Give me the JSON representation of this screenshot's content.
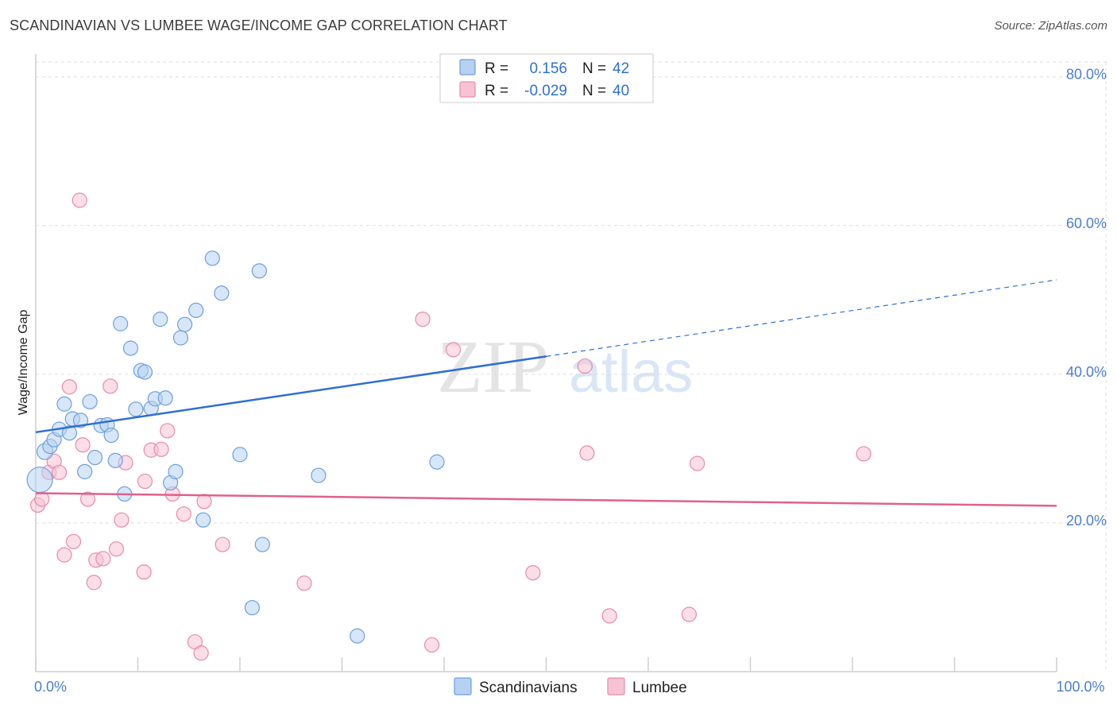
{
  "title": "SCANDINAVIAN VS LUMBEE WAGE/INCOME GAP CORRELATION CHART",
  "source": "Source: ZipAtlas.com",
  "watermark": {
    "zip": "ZIP",
    "atlas": "atlas"
  },
  "colors": {
    "scandinavians_fill": "#b6d1f2",
    "scandinavians_stroke": "#6f9fdc",
    "scandinavians_line": "#2f6fd3",
    "lumbee_fill": "#f7c3d4",
    "lumbee_stroke": "#e88aab",
    "lumbee_line": "#e0608f",
    "tick_label": "#4a7fd0",
    "grid": "#dddddd"
  },
  "legend": {
    "rows": [
      {
        "r_label": "R =",
        "r_value": "0.156",
        "n_label": "N =",
        "n_value": "42"
      },
      {
        "r_label": "R =",
        "r_value": "-0.029",
        "n_label": "N =",
        "n_value": "40"
      }
    ]
  },
  "chart_data": {
    "type": "scatter",
    "title": "SCANDINAVIAN VS LUMBEE WAGE/INCOME GAP CORRELATION CHART",
    "xlabel": "",
    "ylabel": "Wage/Income Gap",
    "xlim": [
      0,
      100
    ],
    "ylim": [
      0,
      82
    ],
    "x_ticks": [
      {
        "value": 0,
        "label": "0.0%"
      },
      {
        "value": 100,
        "label": "100.0%"
      }
    ],
    "y_ticks": [
      {
        "value": 20,
        "label": "20.0%"
      },
      {
        "value": 40,
        "label": "40.0%"
      },
      {
        "value": 60,
        "label": "60.0%"
      },
      {
        "value": 80,
        "label": "80.0%"
      }
    ],
    "grid": true,
    "legend_position": "top-center",
    "series": [
      {
        "name": "Scandinavians",
        "r": 0.156,
        "n": 42,
        "trend": {
          "x0": 0,
          "y0": 32.2,
          "x1": 50,
          "y1": 42.4,
          "dashed_to_x": 100,
          "dashed_to_y": 52.7
        },
        "points": [
          [
            0.4,
            25.8,
            16
          ],
          [
            0.9,
            29.6,
            10
          ],
          [
            1.4,
            30.3,
            9
          ],
          [
            1.8,
            31.2,
            9
          ],
          [
            2.3,
            32.6,
            9
          ],
          [
            2.8,
            36.0,
            9
          ],
          [
            3.3,
            32.1,
            9
          ],
          [
            3.6,
            34.0,
            9
          ],
          [
            4.4,
            33.8,
            9
          ],
          [
            4.8,
            26.9,
            9
          ],
          [
            5.3,
            36.3,
            9
          ],
          [
            5.8,
            28.8,
            9
          ],
          [
            6.4,
            33.1,
            9
          ],
          [
            7.0,
            33.2,
            9
          ],
          [
            7.4,
            31.8,
            9
          ],
          [
            7.8,
            28.4,
            9
          ],
          [
            8.3,
            46.8,
            9
          ],
          [
            8.7,
            23.9,
            9
          ],
          [
            9.3,
            43.5,
            9
          ],
          [
            9.8,
            35.3,
            9
          ],
          [
            10.3,
            40.5,
            9
          ],
          [
            10.7,
            40.3,
            9
          ],
          [
            11.3,
            35.4,
            9
          ],
          [
            11.7,
            36.7,
            9
          ],
          [
            12.2,
            47.4,
            9
          ],
          [
            12.7,
            36.8,
            9
          ],
          [
            13.2,
            25.4,
            9
          ],
          [
            13.7,
            26.9,
            9
          ],
          [
            14.2,
            44.9,
            9
          ],
          [
            14.6,
            46.7,
            9
          ],
          [
            15.7,
            48.6,
            9
          ],
          [
            16.4,
            20.4,
            9
          ],
          [
            17.3,
            55.6,
            9
          ],
          [
            18.2,
            50.9,
            9
          ],
          [
            20.0,
            29.2,
            9
          ],
          [
            21.2,
            8.6,
            9
          ],
          [
            21.9,
            53.9,
            9
          ],
          [
            22.2,
            17.1,
            9
          ],
          [
            27.7,
            26.4,
            9
          ],
          [
            31.5,
            4.8,
            9
          ],
          [
            39.3,
            28.2,
            9
          ],
          [
            43.0,
            79.3,
            9
          ]
        ]
      },
      {
        "name": "Lumbee",
        "r": -0.029,
        "n": 40,
        "trend": {
          "x0": 0,
          "y0": 24.0,
          "x1": 100,
          "y1": 22.3
        },
        "points": [
          [
            0.2,
            22.4,
            9
          ],
          [
            0.6,
            23.2,
            9
          ],
          [
            1.3,
            26.8,
            9
          ],
          [
            1.8,
            28.3,
            9
          ],
          [
            2.3,
            26.8,
            9
          ],
          [
            2.8,
            15.7,
            9
          ],
          [
            3.3,
            38.3,
            9
          ],
          [
            3.7,
            17.5,
            9
          ],
          [
            4.3,
            63.4,
            9
          ],
          [
            4.6,
            30.5,
            9
          ],
          [
            5.1,
            23.2,
            9
          ],
          [
            5.7,
            12.0,
            9
          ],
          [
            5.9,
            15.0,
            9
          ],
          [
            6.6,
            15.2,
            9
          ],
          [
            7.3,
            38.4,
            9
          ],
          [
            7.9,
            16.5,
            9
          ],
          [
            8.4,
            20.4,
            9
          ],
          [
            8.8,
            28.1,
            9
          ],
          [
            10.6,
            13.4,
            9
          ],
          [
            10.7,
            25.6,
            9
          ],
          [
            11.3,
            29.8,
            9
          ],
          [
            12.3,
            29.9,
            9
          ],
          [
            12.9,
            32.4,
            9
          ],
          [
            13.4,
            23.9,
            9
          ],
          [
            14.5,
            21.2,
            9
          ],
          [
            15.6,
            4.0,
            9
          ],
          [
            16.2,
            2.5,
            9
          ],
          [
            16.5,
            22.9,
            9
          ],
          [
            18.3,
            17.1,
            9
          ],
          [
            26.3,
            11.9,
            9
          ],
          [
            37.9,
            47.4,
            9
          ],
          [
            38.8,
            3.6,
            9
          ],
          [
            40.9,
            43.3,
            9
          ],
          [
            48.7,
            13.3,
            9
          ],
          [
            53.8,
            41.1,
            9
          ],
          [
            54.0,
            29.4,
            9
          ],
          [
            56.2,
            7.5,
            9
          ],
          [
            64.0,
            7.7,
            9
          ],
          [
            64.8,
            28.0,
            9
          ],
          [
            81.1,
            29.3,
            9
          ]
        ]
      }
    ]
  }
}
